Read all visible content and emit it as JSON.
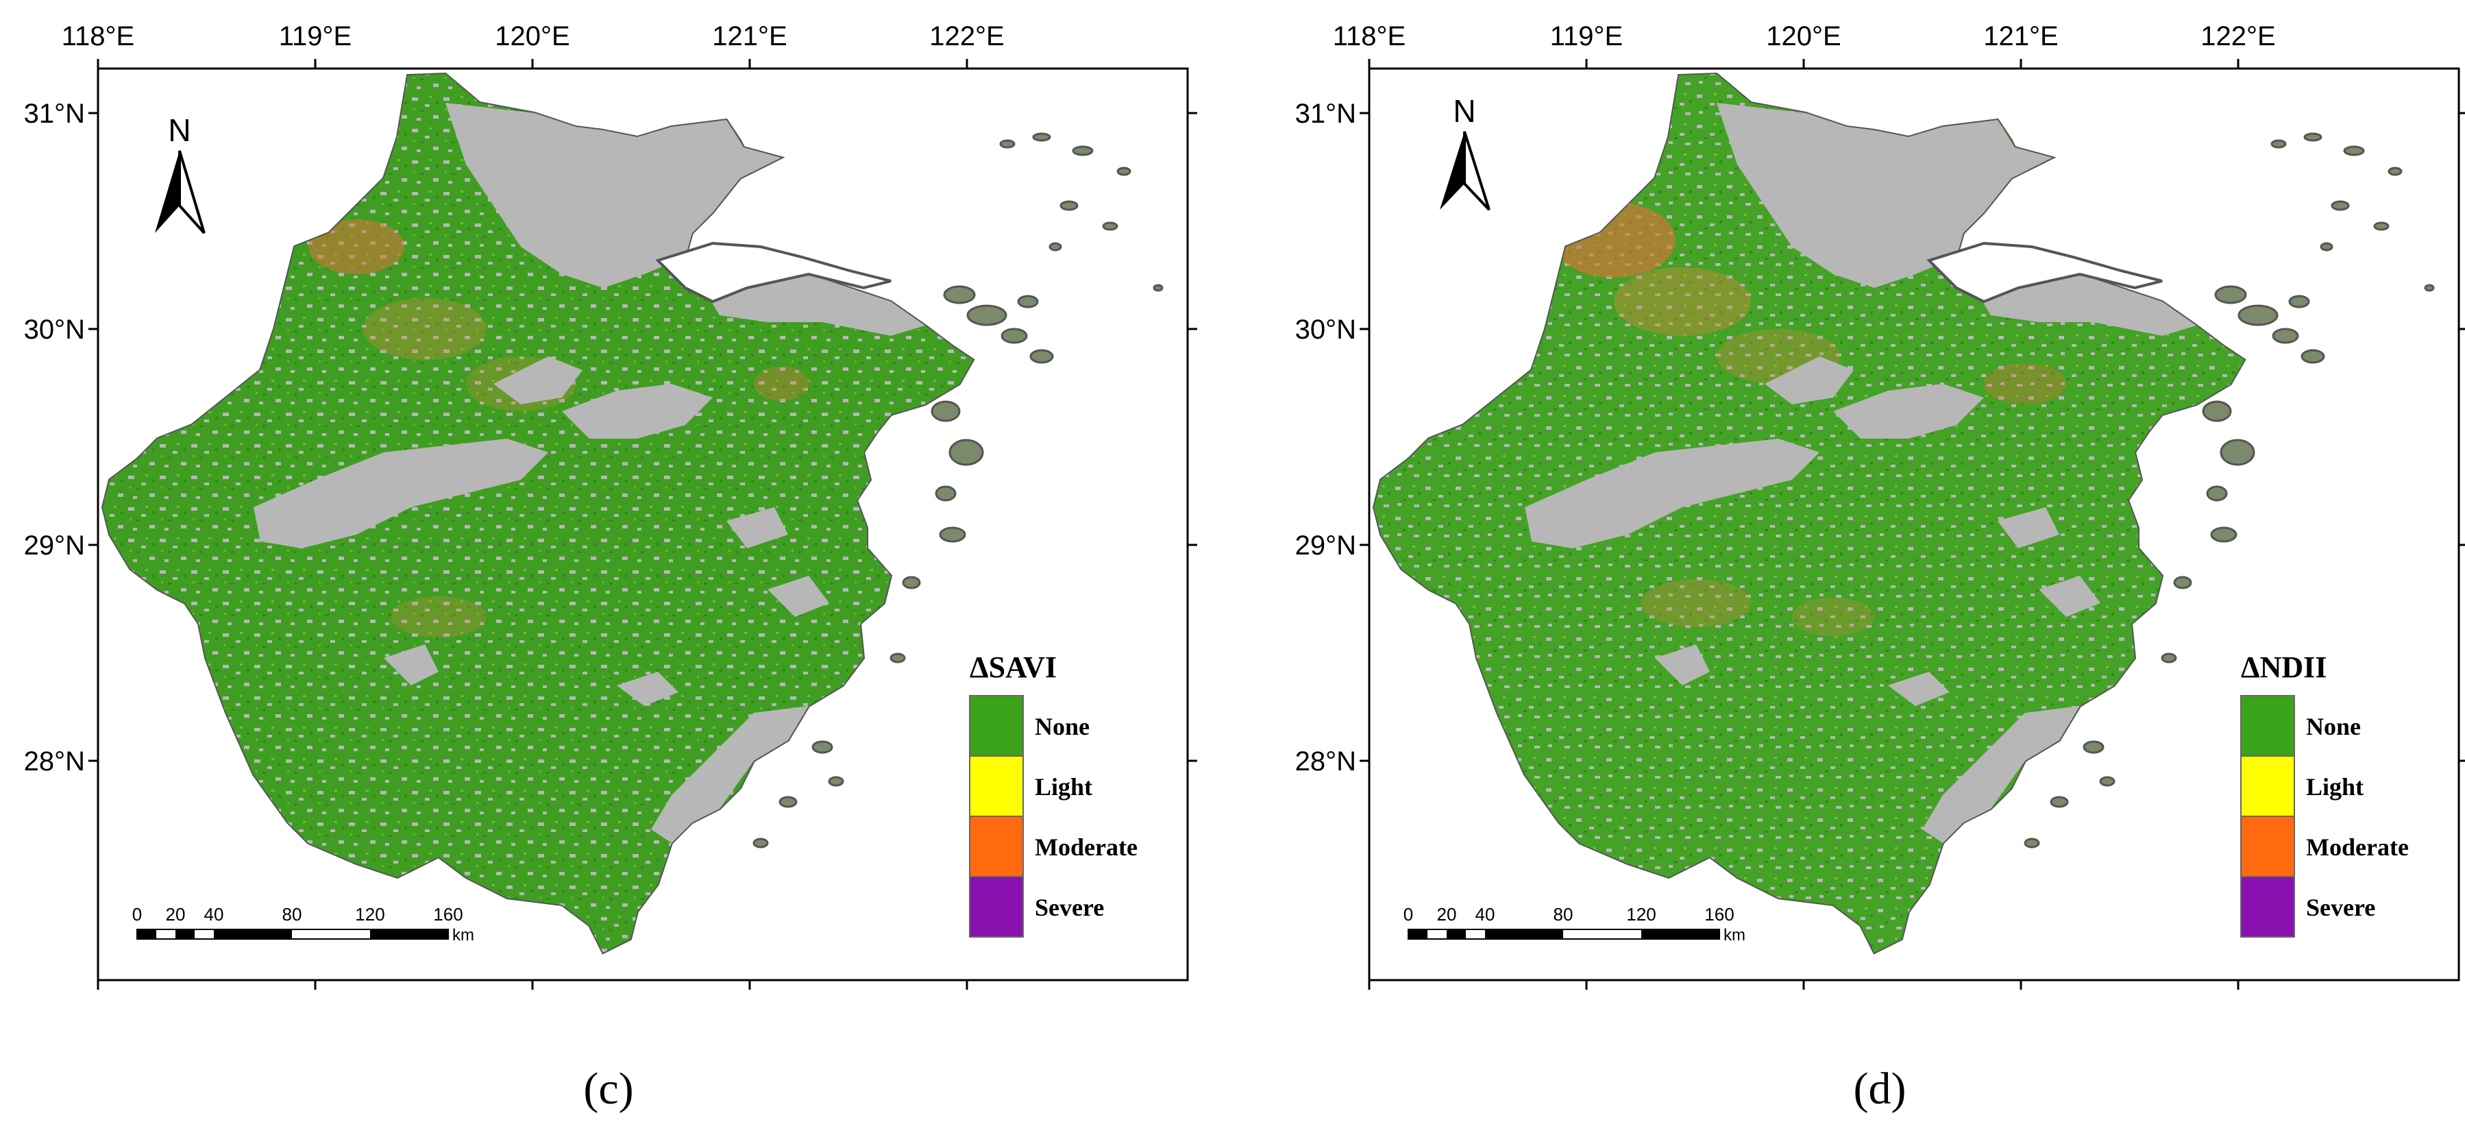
{
  "figure": {
    "panels": [
      {
        "caption": "(c)",
        "legend": {
          "title": "ΔSAVI",
          "classes": [
            {
              "label": "None",
              "color": "#3aa31a"
            },
            {
              "label": "Light",
              "color": "#ffff00"
            },
            {
              "label": "Moderate",
              "color": "#ff6a10"
            },
            {
              "label": "Severe",
              "color": "#8a10b0"
            }
          ]
        },
        "lon_labels": [
          "118°E",
          "119°E",
          "120°E",
          "121°E",
          "122°E"
        ],
        "lat_labels": [
          "31°N",
          "30°N",
          "29°N",
          "28°N"
        ],
        "north": "N",
        "scale": {
          "ticks": [
            "0",
            "20",
            "40",
            "80",
            "120",
            "160"
          ],
          "unit": "km"
        }
      },
      {
        "caption": "(d)",
        "legend": {
          "title": "ΔNDII",
          "classes": [
            {
              "label": "None",
              "color": "#3aa31a"
            },
            {
              "label": "Light",
              "color": "#ffff00"
            },
            {
              "label": "Moderate",
              "color": "#ff6a10"
            },
            {
              "label": "Severe",
              "color": "#8a10b0"
            }
          ]
        },
        "lon_labels": [
          "118°E",
          "119°E",
          "120°E",
          "121°E",
          "122°E"
        ],
        "lat_labels": [
          "31°N",
          "30°N",
          "29°N",
          "28°N"
        ],
        "north": "N",
        "scale": {
          "ticks": [
            "0",
            "20",
            "40",
            "80",
            "120",
            "160"
          ],
          "unit": "km"
        }
      }
    ],
    "colors": {
      "land_gray": "#b7b7b7",
      "outline": "#555555",
      "frame": "#000000"
    }
  }
}
